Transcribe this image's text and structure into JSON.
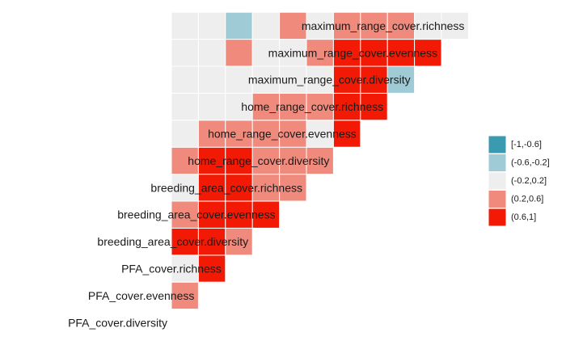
{
  "chart_data": {
    "type": "heatmap",
    "title": "",
    "variables": [
      "PFA_cover.diversity",
      "PFA_cover.evenness",
      "PFA_cover.richness",
      "breeding_area_cover.diversity",
      "breeding_area_cover.evenness",
      "breeding_area_cover.richness",
      "home_range_cover.diversity",
      "home_range_cover.evenness",
      "home_range_cover.richness",
      "maximum_range_cover.diversity",
      "maximum_range_cover.evenness",
      "maximum_range_cover.richness"
    ],
    "matrix_layout": "lower-triangle; row i lists correlation bins of variable i with variables 1..i-1, diagonal shown as its own label",
    "bins": [
      {
        "label": "[-1,-0.6]",
        "color": "#3a9aaf"
      },
      {
        "label": "(-0.6,-0.2]",
        "color": "#9fcbd6"
      },
      {
        "label": "(-0.2,0.2]",
        "color": "#eeeeee"
      },
      {
        "label": "(0.2,0.6]",
        "color": "#f08a7d"
      },
      {
        "label": "(0.6,1]",
        "color": "#f21a05"
      }
    ],
    "cells": [
      [],
      [
        3
      ],
      [
        2,
        4
      ],
      [
        4,
        4,
        3
      ],
      [
        3,
        4,
        4,
        4
      ],
      [
        2,
        4,
        4,
        3,
        3
      ],
      [
        3,
        4,
        4,
        3,
        3,
        3
      ],
      [
        2,
        3,
        3,
        3,
        3,
        2,
        4
      ],
      [
        2,
        2,
        2,
        3,
        3,
        3,
        4,
        4
      ],
      [
        2,
        2,
        2,
        2,
        2,
        2,
        4,
        4,
        1
      ],
      [
        2,
        2,
        3,
        2,
        2,
        3,
        4,
        4,
        4,
        4
      ],
      [
        2,
        2,
        1,
        2,
        3,
        2,
        3,
        3,
        3,
        2,
        2
      ]
    ]
  },
  "legend": {
    "items": [
      "[-1,-0.6]",
      "(-0.6,-0.2]",
      "(-0.2,0.2]",
      "(0.2,0.6]",
      "(0.6,1]"
    ]
  }
}
